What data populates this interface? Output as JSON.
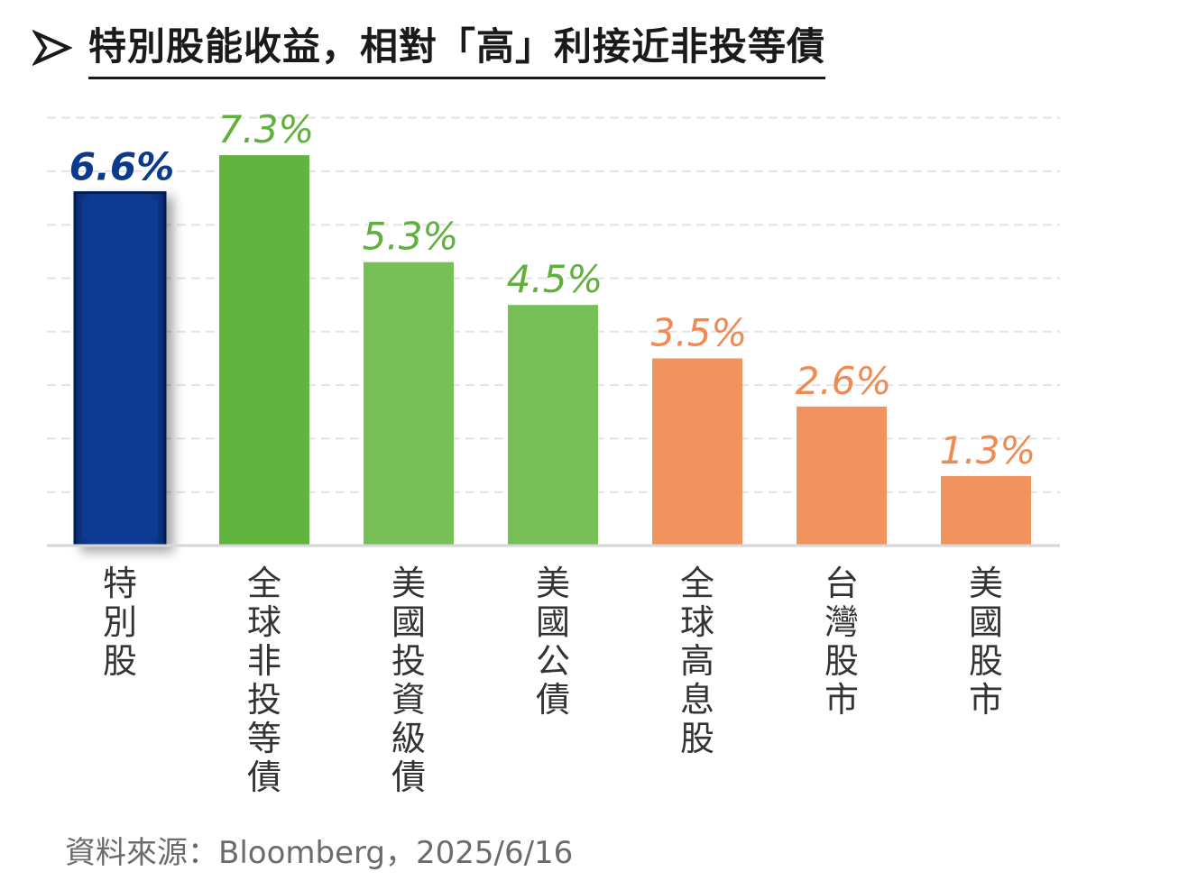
{
  "title": "特別股能收益，相對「高」利接近非投等債",
  "source": "資料來源：Bloomberg，2025/6/16",
  "colors": {
    "blue": "#0b3b94",
    "blue_dark": "#061f57",
    "green": "#62b33f",
    "green_light": "#79bf58",
    "orange": "#f0935e",
    "label_blue": "#0b3a8c",
    "label_green": "#5fb03c",
    "label_orange": "#ef8a52",
    "axis_text": "#333333",
    "grid": "#e3e3e3"
  },
  "chart_data": {
    "type": "bar",
    "categories": [
      "特別股",
      "全球非投等債",
      "美國投資級債",
      "美國公債",
      "全球高息股",
      "台灣股市",
      "美國股市"
    ],
    "values": [
      6.6,
      7.3,
      5.3,
      4.5,
      3.5,
      2.6,
      1.3
    ],
    "data_labels": [
      "6.6%",
      "7.3%",
      "5.3%",
      "4.5%",
      "3.5%",
      "2.6%",
      "1.3%"
    ],
    "bar_colors": [
      "blue",
      "green",
      "green_light",
      "green_light",
      "orange",
      "orange",
      "orange"
    ],
    "ylim": [
      0,
      8
    ],
    "grid": true
  }
}
